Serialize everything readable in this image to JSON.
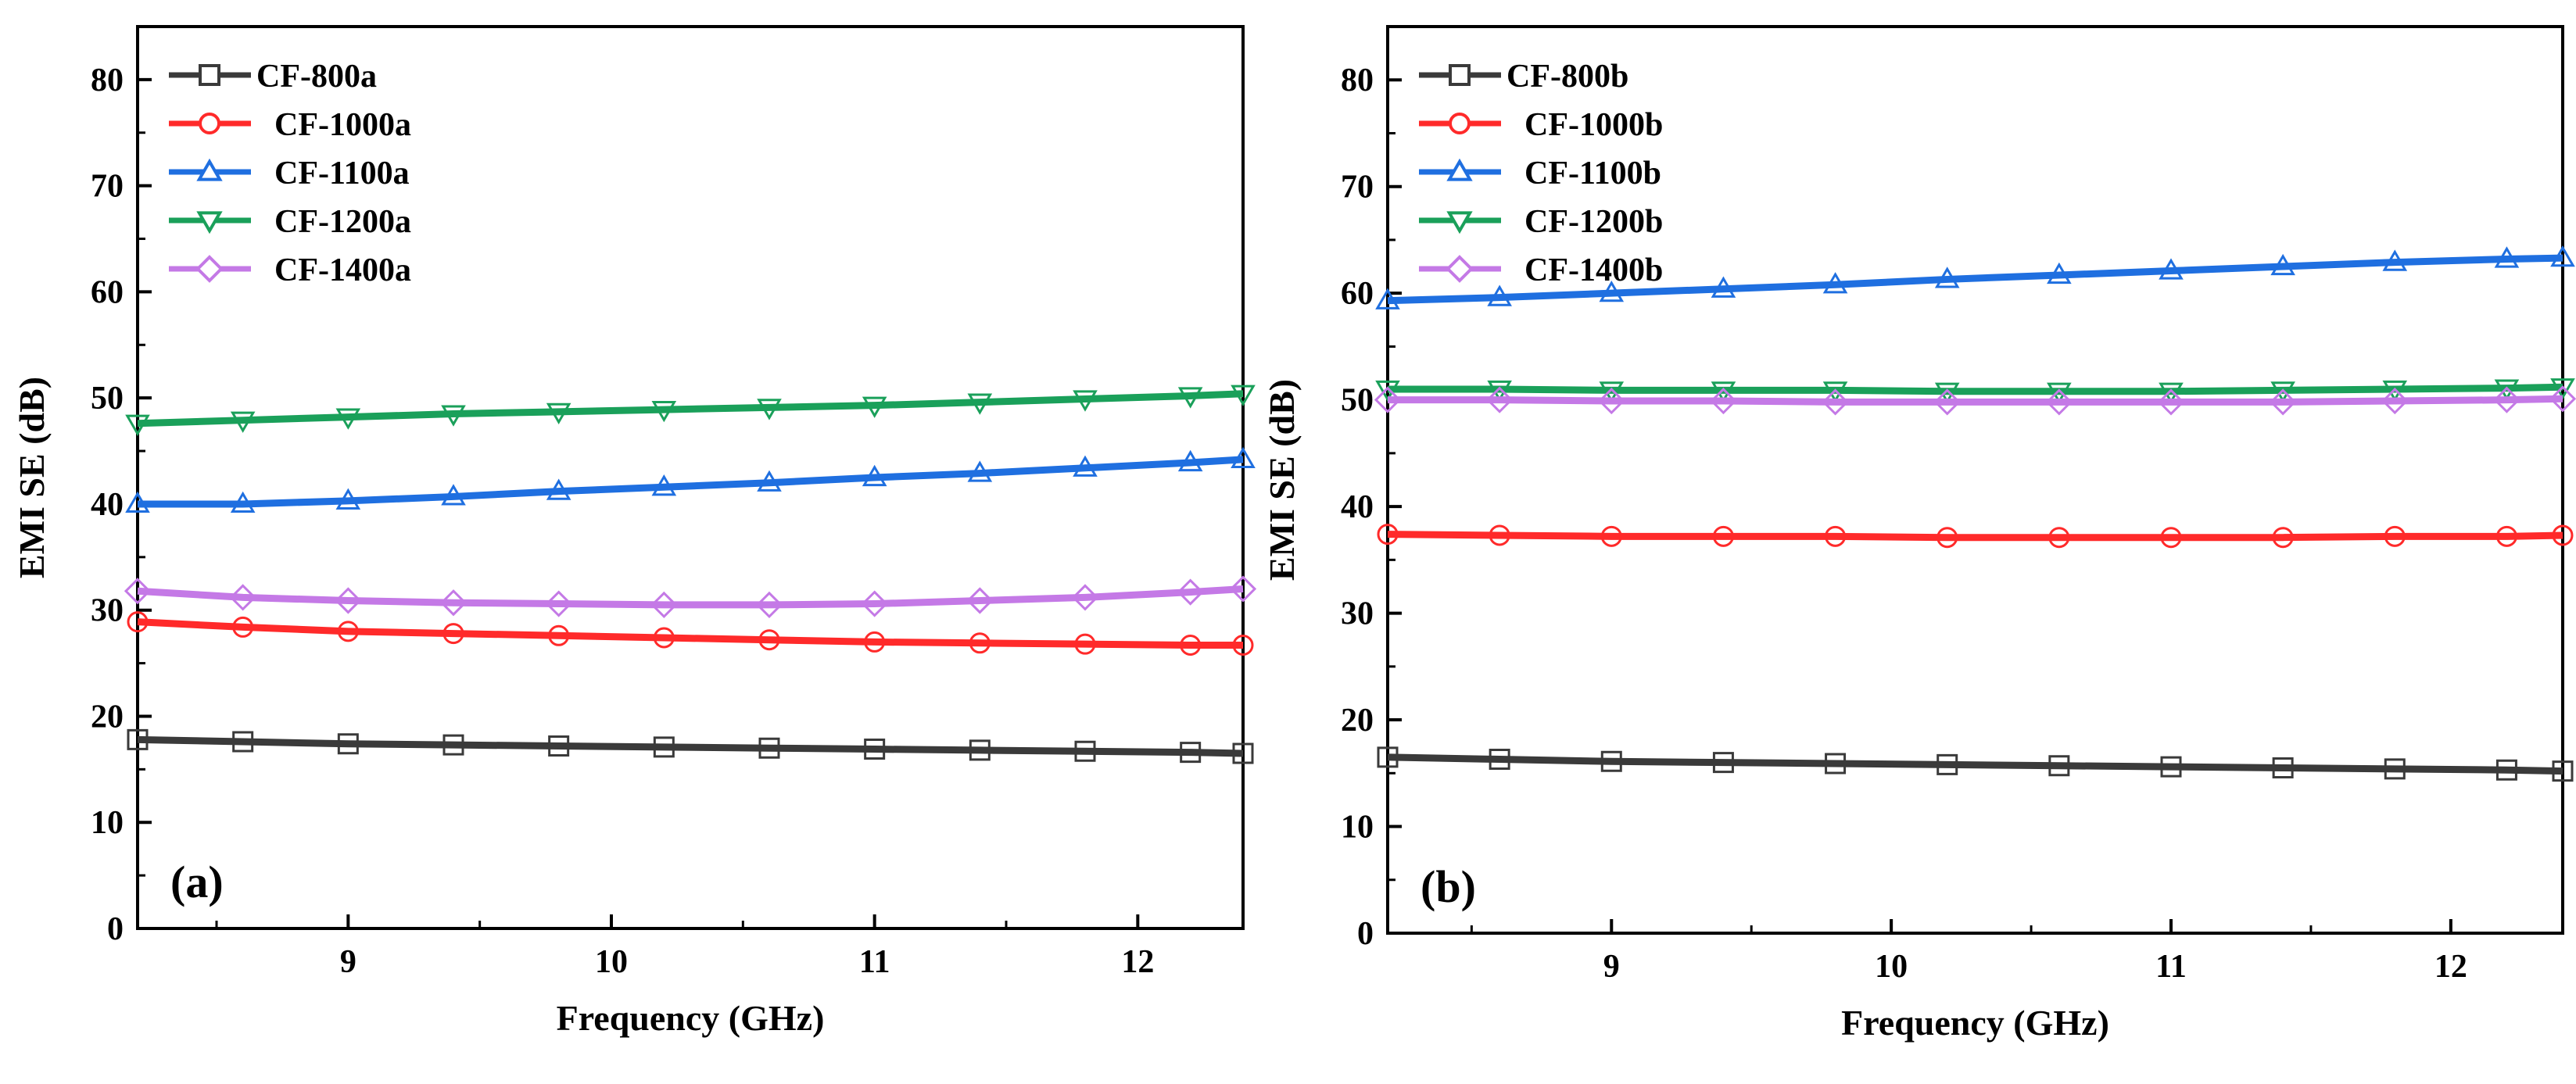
{
  "chart_data": [
    {
      "type": "line",
      "panel_label": "(a)",
      "xlabel": "Frequency (GHz)",
      "ylabel": "EMI SE (dB)",
      "xlim": [
        8.2,
        12.4
      ],
      "ylim": [
        0,
        85
      ],
      "xticks": [
        9,
        10,
        11,
        12
      ],
      "yticks": [
        0,
        10,
        20,
        30,
        40,
        50,
        60,
        70,
        80
      ],
      "legend_position": "top-left",
      "grid": false,
      "x": [
        8.2,
        8.6,
        9.0,
        9.4,
        9.8,
        10.2,
        10.6,
        11.0,
        11.4,
        11.8,
        12.2,
        12.4
      ],
      "series": [
        {
          "name": "CF-800a",
          "color": "#3a3a3a",
          "marker": "square",
          "values": [
            17.8,
            17.6,
            17.4,
            17.3,
            17.2,
            17.1,
            17.0,
            16.9,
            16.8,
            16.7,
            16.6,
            16.5
          ]
        },
        {
          "name": "CF-1000a",
          "color": "#ff2a2a",
          "marker": "circle",
          "values": [
            28.9,
            28.4,
            28.0,
            27.8,
            27.6,
            27.4,
            27.2,
            27.0,
            26.9,
            26.8,
            26.7,
            26.7
          ]
        },
        {
          "name": "CF-1100a",
          "color": "#1f6fe0",
          "marker": "triangle-up",
          "values": [
            40.0,
            40.0,
            40.3,
            40.7,
            41.2,
            41.6,
            42.0,
            42.5,
            42.9,
            43.4,
            43.9,
            44.2
          ]
        },
        {
          "name": "CF-1200a",
          "color": "#1aa05a",
          "marker": "triangle-down",
          "values": [
            47.6,
            47.9,
            48.2,
            48.5,
            48.7,
            48.9,
            49.1,
            49.3,
            49.6,
            49.9,
            50.2,
            50.4
          ]
        },
        {
          "name": "CF-1400a",
          "color": "#c479e6",
          "marker": "diamond",
          "values": [
            31.8,
            31.2,
            30.9,
            30.7,
            30.6,
            30.5,
            30.5,
            30.6,
            30.9,
            31.2,
            31.7,
            32.0
          ]
        }
      ]
    },
    {
      "type": "line",
      "panel_label": "(b)",
      "xlabel": "Frequency (GHz)",
      "ylabel": "EMI SE (dB)",
      "xlim": [
        8.2,
        12.4
      ],
      "ylim": [
        0,
        85
      ],
      "xticks": [
        9,
        10,
        11,
        12
      ],
      "yticks": [
        0,
        10,
        20,
        30,
        40,
        50,
        60,
        70,
        80
      ],
      "legend_position": "top-left",
      "grid": false,
      "x": [
        8.2,
        8.6,
        9.0,
        9.4,
        9.8,
        10.2,
        10.6,
        11.0,
        11.4,
        11.8,
        12.2,
        12.4
      ],
      "series": [
        {
          "name": "CF-800b",
          "color": "#3a3a3a",
          "marker": "square",
          "values": [
            16.5,
            16.3,
            16.1,
            16.0,
            15.9,
            15.8,
            15.7,
            15.6,
            15.5,
            15.4,
            15.3,
            15.2
          ]
        },
        {
          "name": "CF-1000b",
          "color": "#ff2a2a",
          "marker": "circle",
          "values": [
            37.4,
            37.3,
            37.2,
            37.2,
            37.2,
            37.1,
            37.1,
            37.1,
            37.1,
            37.2,
            37.2,
            37.3
          ]
        },
        {
          "name": "CF-1100b",
          "color": "#1f6fe0",
          "marker": "triangle-up",
          "values": [
            59.3,
            59.6,
            60.0,
            60.4,
            60.8,
            61.3,
            61.7,
            62.1,
            62.5,
            62.9,
            63.2,
            63.3
          ]
        },
        {
          "name": "CF-1200b",
          "color": "#1aa05a",
          "marker": "triangle-down",
          "values": [
            51.0,
            51.0,
            50.9,
            50.9,
            50.9,
            50.8,
            50.8,
            50.8,
            50.9,
            51.0,
            51.1,
            51.2
          ]
        },
        {
          "name": "CF-1400b",
          "color": "#c479e6",
          "marker": "diamond",
          "values": [
            50.0,
            50.0,
            49.9,
            49.9,
            49.8,
            49.8,
            49.8,
            49.8,
            49.8,
            49.9,
            50.0,
            50.1
          ]
        }
      ]
    }
  ]
}
